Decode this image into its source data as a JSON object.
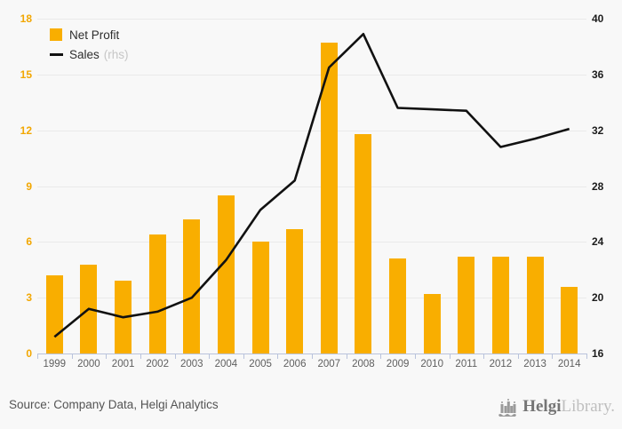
{
  "chart_data": {
    "type": "bar+line",
    "categories": [
      "1999",
      "2000",
      "2001",
      "2002",
      "2003",
      "2004",
      "2005",
      "2006",
      "2007",
      "2008",
      "2009",
      "2010",
      "2011",
      "2012",
      "2013",
      "2014"
    ],
    "series": [
      {
        "name": "Net Profit",
        "type": "bar",
        "axis": "left",
        "color": "#F9AE00",
        "values": [
          4.2,
          4.8,
          3.9,
          6.4,
          7.2,
          8.5,
          6.0,
          6.7,
          16.7,
          11.8,
          5.1,
          3.2,
          5.2,
          5.2,
          5.2,
          3.6
        ]
      },
      {
        "name": "Sales",
        "note": "(rhs)",
        "type": "line",
        "axis": "right",
        "color": "#111111",
        "values": [
          17.2,
          19.2,
          18.6,
          19.0,
          20.0,
          22.7,
          26.3,
          28.4,
          36.5,
          38.9,
          33.6,
          33.5,
          33.4,
          30.8,
          31.4,
          32.1
        ]
      }
    ],
    "left_axis": {
      "min": 0,
      "max": 18,
      "ticks": [
        0,
        3,
        6,
        9,
        12,
        15,
        18
      ],
      "label_color": "#F2A702"
    },
    "right_axis": {
      "min": 16,
      "max": 40,
      "ticks": [
        16,
        20,
        24,
        28,
        32,
        36,
        40
      ],
      "label_color": "#1c1c1c"
    },
    "grid": true,
    "legend_position": "top-left",
    "title": "",
    "xlabel": "",
    "ylabel": ""
  },
  "footer": {
    "source": "Source: Company Data, Helgi Analytics",
    "logo_bold": "Helgi",
    "logo_light": "Library."
  },
  "colors": {
    "background": "#f8f8f8",
    "bar": "#F9AE00",
    "line": "#111111",
    "gridline": "#eaeaea",
    "axis": "#b9c3dc",
    "year_label": "#5f5f5f"
  }
}
